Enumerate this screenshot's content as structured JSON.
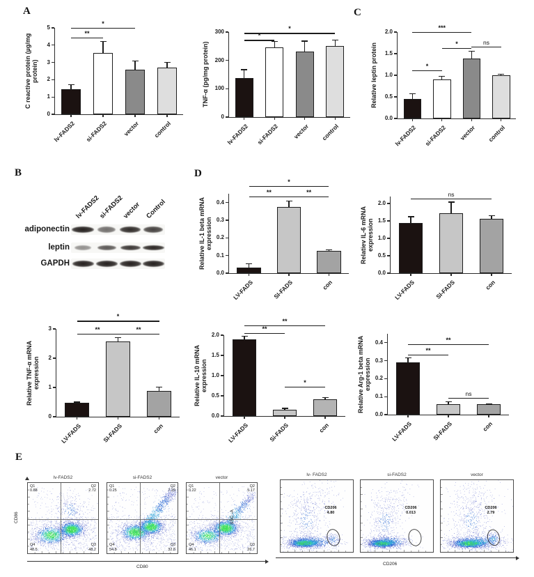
{
  "panels": {
    "a": "A",
    "b": "B",
    "c": "C",
    "d": "D",
    "e": "E"
  },
  "chart_data": [
    {
      "id": "c_reactive_protein",
      "type": "bar",
      "panel": "A",
      "ylabel": "C reactive protein (µg/mg protein)",
      "categories": [
        "lv-FADS2",
        "si-FADS2",
        "vector",
        "control"
      ],
      "values": [
        1.45,
        3.55,
        2.6,
        2.7
      ],
      "errors": [
        0.25,
        0.65,
        0.5,
        0.3
      ],
      "ylim": [
        0,
        5
      ],
      "yticks": [
        0,
        1,
        2,
        3,
        4,
        5
      ],
      "tick_decimals": 0,
      "bar_colors": [
        "#1b1211",
        "#ffffff",
        "#8a8a8a",
        "#dedede"
      ],
      "sig": [
        {
          "from": 0,
          "to": 1,
          "label": "**",
          "y": 4.45
        },
        {
          "from": 0,
          "to": 2,
          "label": "*",
          "y": 5.0
        }
      ]
    },
    {
      "id": "tnf_alpha_protein",
      "type": "bar",
      "panel": "A",
      "ylabel": "TNF-α  (pg/mg protein)",
      "categories": [
        "lv-FADS2",
        "si-FADS2",
        "vector",
        "control"
      ],
      "values": [
        137,
        245,
        230,
        250
      ],
      "errors": [
        30,
        22,
        38,
        22
      ],
      "ylim": [
        0,
        300
      ],
      "yticks": [
        0,
        100,
        200,
        300
      ],
      "tick_decimals": 0,
      "bar_colors": [
        "#1b1211",
        "#ffffff",
        "#8a8a8a",
        "#dedede"
      ],
      "sig": [
        {
          "from": 0,
          "to": 1,
          "label": "*",
          "y": 272
        },
        {
          "from": 0,
          "to": 3,
          "label": "*",
          "y": 297
        }
      ]
    },
    {
      "id": "relative_leptin_protein",
      "type": "bar",
      "panel": "C",
      "ylabel": "Relative leptin protein",
      "categories": [
        "lv-FADS2",
        "si-FADS2",
        "vector",
        "control"
      ],
      "values": [
        0.45,
        0.9,
        1.38,
        1.0
      ],
      "errors": [
        0.12,
        0.08,
        0.18,
        0.03
      ],
      "ylim": [
        0,
        2.0
      ],
      "yticks": [
        0.0,
        0.5,
        1.0,
        1.5,
        2.0
      ],
      "tick_decimals": 1,
      "bar_colors": [
        "#1b1211",
        "#ffffff",
        "#8a8a8a",
        "#dedede"
      ],
      "sig": [
        {
          "from": 0,
          "to": 1,
          "label": "*",
          "y": 1.12
        },
        {
          "from": 1,
          "to": 2,
          "label": "*",
          "y": 1.63
        },
        {
          "from": 0,
          "to": 2,
          "label": "***",
          "y": 2.0
        },
        {
          "from": 2,
          "to": 3,
          "label": "ns",
          "y": 1.66
        }
      ]
    },
    {
      "id": "il1_beta_mrna",
      "type": "bar",
      "panel": "D",
      "ylabel": "Relative IL-1 beta mRNA expression",
      "categories": [
        "LV-FADS",
        "SI-FADS",
        "con"
      ],
      "values": [
        0.03,
        0.375,
        0.125
      ],
      "errors": [
        0.023,
        0.032,
        0.007
      ],
      "ylim": [
        0,
        0.45
      ],
      "yticks": [
        0.0,
        0.1,
        0.2,
        0.3,
        0.4
      ],
      "tick_decimals": 1,
      "bar_colors": [
        "#1b1211",
        "#c6c6c6",
        "#a3a3a3"
      ],
      "sig": [
        {
          "from": 0,
          "to": 1,
          "label": "**",
          "y": 0.435
        },
        {
          "from": 1,
          "to": 2,
          "label": "**",
          "y": 0.435
        },
        {
          "from": 0,
          "to": 2,
          "label": "*",
          "y": 0.495
        }
      ]
    },
    {
      "id": "il6_mrna",
      "type": "bar",
      "panel": "D",
      "ylabel": "Relatiev IL-6 mRNA expression",
      "categories": [
        "LV-FADS",
        "SI-FADS",
        "con"
      ],
      "values": [
        1.45,
        1.72,
        1.57
      ],
      "errors": [
        0.17,
        0.32,
        0.08
      ],
      "ylim": [
        0,
        2.2
      ],
      "yticks": [
        0.0,
        0.5,
        1.0,
        1.5,
        2.0
      ],
      "tick_decimals": 1,
      "bar_colors": [
        "#1b1211",
        "#c6c6c6",
        "#a3a3a3"
      ],
      "sig": [
        {
          "from": 0,
          "to": 2,
          "label": "ns",
          "y": 2.14
        }
      ]
    },
    {
      "id": "tnf_alpha_mrna",
      "type": "bar",
      "panel": "D",
      "ylabel": "Relative TNF-α  mRNA expression",
      "categories": [
        "LV-FADS",
        "SI-FADS",
        "con"
      ],
      "values": [
        0.48,
        2.58,
        0.88
      ],
      "errors": [
        0.02,
        0.13,
        0.13
      ],
      "ylim": [
        0,
        3
      ],
      "yticks": [
        0,
        1,
        2,
        3
      ],
      "tick_decimals": 0,
      "bar_colors": [
        "#1b1211",
        "#c6c6c6",
        "#a3a3a3"
      ],
      "sig": [
        {
          "from": 0,
          "to": 1,
          "label": "**",
          "y": 2.83
        },
        {
          "from": 1,
          "to": 2,
          "label": "**",
          "y": 2.83
        },
        {
          "from": 0,
          "to": 2,
          "label": "*",
          "y": 3.28
        }
      ]
    },
    {
      "id": "il10_mrna",
      "type": "bar",
      "panel": "D",
      "ylabel": "Relative IL-10 mRNA expression",
      "categories": [
        "LV-FADS",
        "Si-FADS",
        "con"
      ],
      "values": [
        1.9,
        0.16,
        0.41
      ],
      "errors": [
        0.07,
        0.03,
        0.04
      ],
      "ylim": [
        0,
        2.0
      ],
      "yticks": [
        0.0,
        0.5,
        1.0,
        1.5,
        2.0
      ],
      "tick_decimals": 1,
      "bar_colors": [
        "#1b1211",
        "#c6c6c6",
        "#b4b4b4"
      ],
      "sig": [
        {
          "from": 0,
          "to": 1,
          "label": "**",
          "y": 2.06
        },
        {
          "from": 0,
          "to": 2,
          "label": "**",
          "y": 2.24
        },
        {
          "from": 1,
          "to": 2,
          "label": "*",
          "y": 0.73
        }
      ]
    },
    {
      "id": "arg1_mrna",
      "type": "bar",
      "panel": "D",
      "ylabel": "Relative Arg-1 beta mRNA expression",
      "categories": [
        "LV-FADS",
        "SI-FADS",
        "con"
      ],
      "values": [
        0.29,
        0.057,
        0.057
      ],
      "errors": [
        0.025,
        0.015,
        0.004
      ],
      "ylim": [
        0,
        0.45
      ],
      "yticks": [
        0.0,
        0.1,
        0.2,
        0.3,
        0.4
      ],
      "tick_decimals": 1,
      "bar_colors": [
        "#1b1211",
        "#c6c6c6",
        "#a3a3a3"
      ],
      "sig": [
        {
          "from": 0,
          "to": 1,
          "label": "**",
          "y": 0.335
        },
        {
          "from": 0,
          "to": 2,
          "label": "**",
          "y": 0.392
        },
        {
          "from": 1,
          "to": 2,
          "label": "ns",
          "y": 0.095
        }
      ]
    }
  ],
  "blot": {
    "panel": "B",
    "col_labels": [
      "lv-FADS2",
      "si-FADS2",
      "vector",
      "Control"
    ],
    "row_labels": [
      "adiponectin",
      "leptin",
      "GAPDH"
    ],
    "band_intensities": [
      [
        0.95,
        0.6,
        0.9,
        0.8
      ],
      [
        0.45,
        0.7,
        0.85,
        0.92
      ],
      [
        0.95,
        0.95,
        0.95,
        0.95
      ]
    ],
    "band_widths": [
      [
        32,
        26,
        30,
        28
      ],
      [
        24,
        27,
        29,
        31
      ],
      [
        31,
        31,
        31,
        31
      ]
    ]
  },
  "flow": {
    "left_group": {
      "ylabel": "CD86",
      "xlabel": "CD80",
      "plots": [
        {
          "title": "lv-FADS2",
          "q1": "Q1",
          "q1v": "0.88",
          "q2": "Q2",
          "q2v": "2.72",
          "q4": "Q4",
          "q4v": "48.5",
          "q3": "Q3",
          "q3v": "48.2"
        },
        {
          "title": "si-FADS2",
          "q1": "Q1",
          "q1v": "0.25",
          "q2": "Q2",
          "q2v": "7.29",
          "q4": "Q4",
          "q4v": "54.8",
          "q3": "Q3",
          "q3v": "32.8"
        },
        {
          "title": "vector",
          "q1": "Q1",
          "q1v": "0.22",
          "q2": "Q2",
          "q2v": "5.17",
          "q4": "Q4",
          "q4v": "46.1",
          "q3": "Q3",
          "q3v": "26.7"
        }
      ]
    },
    "right_group": {
      "ylabel": "SSC -A",
      "xlabel": "CD206",
      "plots": [
        {
          "title": "lv- FADS2",
          "gate_label": "CD206",
          "gate_value": "4.80"
        },
        {
          "title": "si-FADS2",
          "gate_label": "CD206",
          "gate_value": "0.013"
        },
        {
          "title": "vector",
          "gate_label": "CD206",
          "gate_value": "2.79"
        }
      ]
    }
  }
}
